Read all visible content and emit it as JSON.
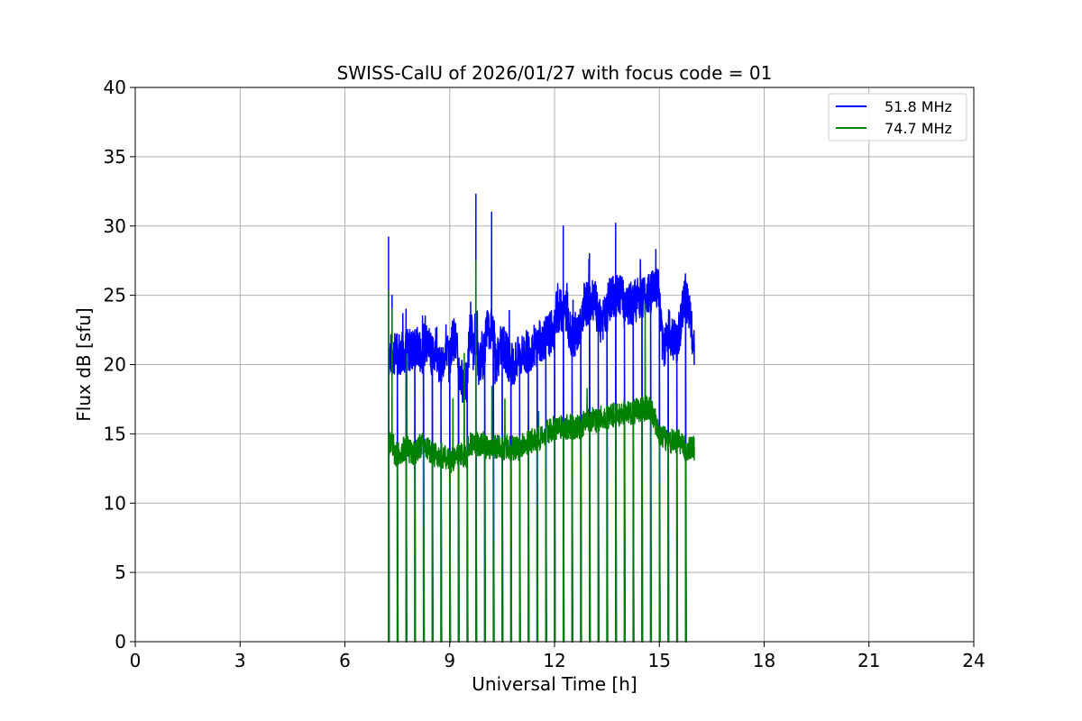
{
  "chart_data": {
    "type": "line",
    "title": "SWISS-CalU of 2026/01/27 with focus code = 01",
    "xlabel": "Universal Time [h]",
    "ylabel": "Flux dB [sfu]",
    "xlim": [
      0,
      24
    ],
    "ylim": [
      0,
      40
    ],
    "xticks": [
      0,
      3,
      6,
      9,
      12,
      15,
      18,
      21,
      24
    ],
    "yticks": [
      0,
      5,
      10,
      15,
      20,
      25,
      30,
      35,
      40
    ],
    "grid": true,
    "legend_position": "top-right",
    "series": [
      {
        "name": "51.8 MHz",
        "color": "#0000ff",
        "x": [
          7.25,
          7.3,
          7.35,
          7.4,
          7.5,
          7.6,
          7.75,
          7.9,
          8.0,
          8.2,
          8.3,
          8.5,
          8.6,
          8.75,
          8.9,
          9.0,
          9.1,
          9.3,
          9.5,
          9.6,
          9.7,
          9.75,
          9.8,
          10.0,
          10.2,
          10.3,
          10.5,
          10.75,
          11.0,
          11.25,
          11.5,
          11.75,
          12.0,
          12.25,
          12.4,
          12.5,
          12.75,
          13.0,
          13.25,
          13.5,
          13.75,
          14.0,
          14.25,
          14.5,
          14.75,
          14.9,
          15.0,
          15.1,
          15.25,
          15.5,
          15.75,
          16.0
        ],
        "y": [
          29.2,
          21.5,
          25.0,
          21.0,
          22.2,
          20.5,
          24.0,
          21.0,
          22.5,
          20.5,
          23.5,
          20.5,
          21.5,
          19.5,
          21.5,
          20.0,
          23.0,
          19.0,
          18.5,
          24.5,
          20.0,
          32.3,
          20.0,
          20.5,
          31.0,
          20.0,
          21.5,
          20.0,
          20.5,
          21.0,
          21.5,
          22.0,
          22.5,
          30.0,
          22.5,
          22.0,
          22.5,
          28.0,
          23.0,
          23.5,
          30.2,
          24.0,
          24.5,
          25.0,
          25.0,
          28.3,
          24.5,
          21.0,
          22.5,
          21.5,
          25.0,
          21.5
        ]
      },
      {
        "name": "74.7 MHz",
        "color": "#008000",
        "x": [
          7.25,
          7.3,
          7.35,
          7.4,
          7.5,
          7.75,
          8.0,
          8.25,
          8.5,
          8.75,
          9.0,
          9.25,
          9.5,
          9.75,
          10.0,
          10.25,
          10.5,
          10.75,
          11.0,
          11.25,
          11.5,
          11.75,
          12.0,
          12.25,
          12.5,
          12.75,
          13.0,
          13.25,
          13.5,
          13.75,
          14.0,
          14.25,
          14.5,
          14.75,
          15.0,
          15.25,
          15.5,
          15.75,
          16.0
        ],
        "y": [
          25.3,
          14.0,
          24.0,
          13.5,
          13.5,
          14.0,
          13.5,
          14.5,
          13.5,
          13.5,
          13.0,
          13.5,
          13.5,
          27.5,
          14.0,
          14.0,
          14.0,
          14.0,
          14.0,
          14.5,
          14.5,
          15.0,
          15.5,
          15.5,
          15.5,
          15.5,
          16.0,
          16.0,
          16.5,
          17.0,
          16.5,
          16.5,
          17.0,
          17.0,
          15.0,
          14.5,
          14.5,
          14.0,
          14.0
        ]
      }
    ],
    "dropout_x": [
      7.25,
      7.5,
      7.75,
      8.0,
      8.25,
      8.5,
      8.75,
      9.0,
      9.25,
      9.5,
      9.75,
      10.0,
      10.25,
      10.5,
      10.75,
      11.0,
      11.25,
      11.5,
      11.75,
      12.0,
      12.25,
      12.5,
      12.75,
      13.0,
      13.25,
      13.5,
      13.75,
      14.0,
      14.25,
      14.5,
      14.75,
      15.0,
      15.25,
      15.5,
      15.75
    ]
  }
}
